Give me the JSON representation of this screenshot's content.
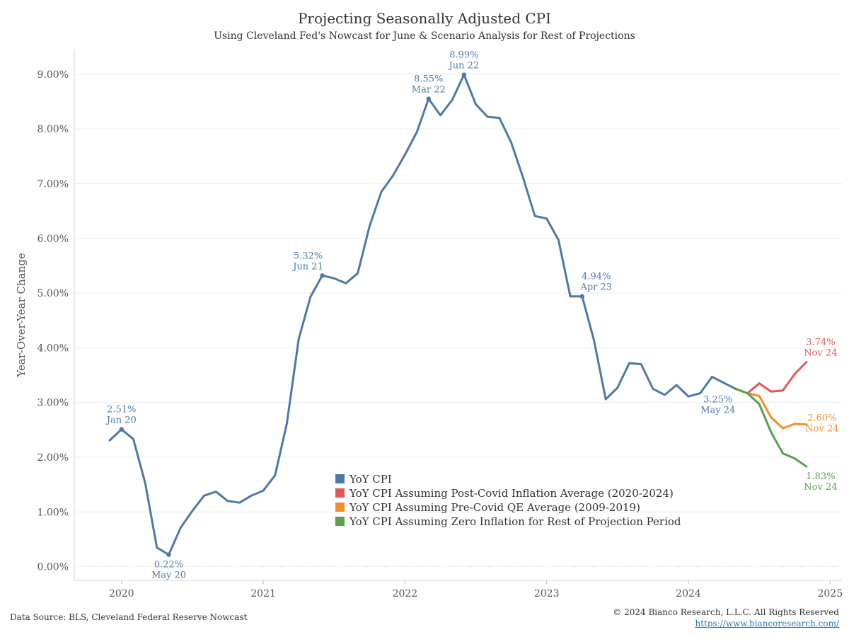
{
  "header": {
    "title": "Projecting Seasonally Adjusted CPI",
    "subtitle": "Using Cleveland Fed's Nowcast for June & Scenario Analysis for Rest of Projections"
  },
  "footer": {
    "source": "Data Source: BLS, Cleveland Federal Reserve Nowcast",
    "copyright": "© 2024 Bianco Research, L.L.C. All Rights Reserved",
    "url": "https://www.biancoresearch.com/"
  },
  "chart_data": {
    "type": "line",
    "ylabel": "Year-Over-Year Change",
    "ylim": [
      -0.25,
      9.45
    ],
    "yticks": [
      0,
      1,
      2,
      3,
      4,
      5,
      6,
      7,
      8,
      9
    ],
    "ytick_labels": [
      "0.00%",
      "1.00%",
      "2.00%",
      "3.00%",
      "4.00%",
      "5.00%",
      "6.00%",
      "7.00%",
      "8.00%",
      "9.00%"
    ],
    "xlim": [
      "2019-09",
      "2025-02"
    ],
    "xticks": [
      "2020-01",
      "2021-01",
      "2022-01",
      "2023-01",
      "2024-01",
      "2025-01"
    ],
    "xtick_labels": [
      "2020",
      "2021",
      "2022",
      "2023",
      "2024",
      "2025"
    ],
    "grid": true,
    "legend_position": "bottom-center",
    "series": [
      {
        "name": "YoY CPI",
        "color": "#4e79a7",
        "dates": [
          "2019-12",
          "2020-01",
          "2020-02",
          "2020-03",
          "2020-04",
          "2020-05",
          "2020-06",
          "2020-07",
          "2020-08",
          "2020-09",
          "2020-10",
          "2020-11",
          "2020-12",
          "2021-01",
          "2021-02",
          "2021-03",
          "2021-04",
          "2021-05",
          "2021-06",
          "2021-07",
          "2021-08",
          "2021-09",
          "2021-10",
          "2021-11",
          "2021-12",
          "2022-01",
          "2022-02",
          "2022-03",
          "2022-04",
          "2022-05",
          "2022-06",
          "2022-07",
          "2022-08",
          "2022-09",
          "2022-10",
          "2022-11",
          "2022-12",
          "2023-01",
          "2023-02",
          "2023-03",
          "2023-04",
          "2023-05",
          "2023-06",
          "2023-07",
          "2023-08",
          "2023-09",
          "2023-10",
          "2023-11",
          "2023-12",
          "2024-01",
          "2024-02",
          "2024-03",
          "2024-04",
          "2024-05"
        ],
        "values": [
          2.31,
          2.51,
          2.33,
          1.53,
          0.35,
          0.22,
          0.71,
          1.02,
          1.3,
          1.37,
          1.2,
          1.17,
          1.3,
          1.39,
          1.67,
          2.62,
          4.16,
          4.93,
          5.32,
          5.27,
          5.18,
          5.36,
          6.22,
          6.85,
          7.15,
          7.53,
          7.94,
          8.55,
          8.25,
          8.53,
          8.99,
          8.45,
          8.22,
          8.2,
          7.75,
          7.11,
          6.41,
          6.36,
          5.97,
          4.94,
          4.94,
          4.14,
          3.06,
          3.27,
          3.72,
          3.7,
          3.25,
          3.14,
          3.32,
          3.11,
          3.17,
          3.47,
          3.36,
          3.25
        ]
      },
      {
        "name": "YoY CPI Assuming Post-Covid Inflation Average (2020-2024)",
        "color": "#e15759",
        "dates": [
          "2024-05",
          "2024-06",
          "2024-07",
          "2024-08",
          "2024-09",
          "2024-10",
          "2024-11"
        ],
        "values": [
          3.25,
          3.17,
          3.35,
          3.2,
          3.22,
          3.52,
          3.74
        ]
      },
      {
        "name": "YoY CPI Assuming Pre-Covid QE Average (2009-2019)",
        "color": "#f28e2b",
        "dates": [
          "2024-05",
          "2024-06",
          "2024-07",
          "2024-08",
          "2024-09",
          "2024-10",
          "2024-11"
        ],
        "values": [
          3.25,
          3.17,
          3.12,
          2.73,
          2.53,
          2.61,
          2.6
        ]
      },
      {
        "name": "YoY CPI Assuming Zero Inflation for Rest of Projection Period",
        "color": "#59a14f",
        "dates": [
          "2024-05",
          "2024-06",
          "2024-07",
          "2024-08",
          "2024-09",
          "2024-10",
          "2024-11"
        ],
        "values": [
          3.25,
          3.17,
          2.97,
          2.46,
          2.07,
          1.98,
          1.83
        ]
      }
    ],
    "annotations": [
      {
        "value": "2.51%",
        "date_label": "Jan 20",
        "x": "2020-01",
        "y": 2.51,
        "color": "#4e79a7",
        "marker": true,
        "side": "above"
      },
      {
        "value": "0.22%",
        "date_label": "May 20",
        "x": "2020-05",
        "y": 0.22,
        "color": "#4e79a7",
        "marker": true,
        "side": "below"
      },
      {
        "value": "5.32%",
        "date_label": "Jun 21",
        "x": "2021-06",
        "y": 5.32,
        "color": "#4e79a7",
        "marker": true,
        "side": "above-left"
      },
      {
        "value": "8.55%",
        "date_label": "Mar 22",
        "x": "2022-03",
        "y": 8.55,
        "color": "#4e79a7",
        "marker": true,
        "side": "above"
      },
      {
        "value": "8.99%",
        "date_label": "Jun 22",
        "x": "2022-06",
        "y": 8.99,
        "color": "#4e79a7",
        "marker": true,
        "side": "above"
      },
      {
        "value": "4.94%",
        "date_label": "Apr 23",
        "x": "2023-04",
        "y": 4.94,
        "color": "#4e79a7",
        "marker": true,
        "side": "above-right"
      },
      {
        "value": "3.25%",
        "date_label": "May 24",
        "x": "2024-05",
        "y": 3.25,
        "color": "#4e79a7",
        "marker": false,
        "side": "below-left"
      },
      {
        "value": "3.74%",
        "date_label": "Nov 24",
        "x": "2024-11",
        "y": 3.74,
        "color": "#e15759",
        "marker": false,
        "side": "above-right"
      },
      {
        "value": "2.60%",
        "date_label": "Nov 24",
        "x": "2024-11",
        "y": 2.6,
        "color": "#f28e2b",
        "marker": false,
        "side": "right"
      },
      {
        "value": "1.83%",
        "date_label": "Nov 24",
        "x": "2024-11",
        "y": 1.83,
        "color": "#59a14f",
        "marker": false,
        "side": "below-right"
      }
    ]
  }
}
